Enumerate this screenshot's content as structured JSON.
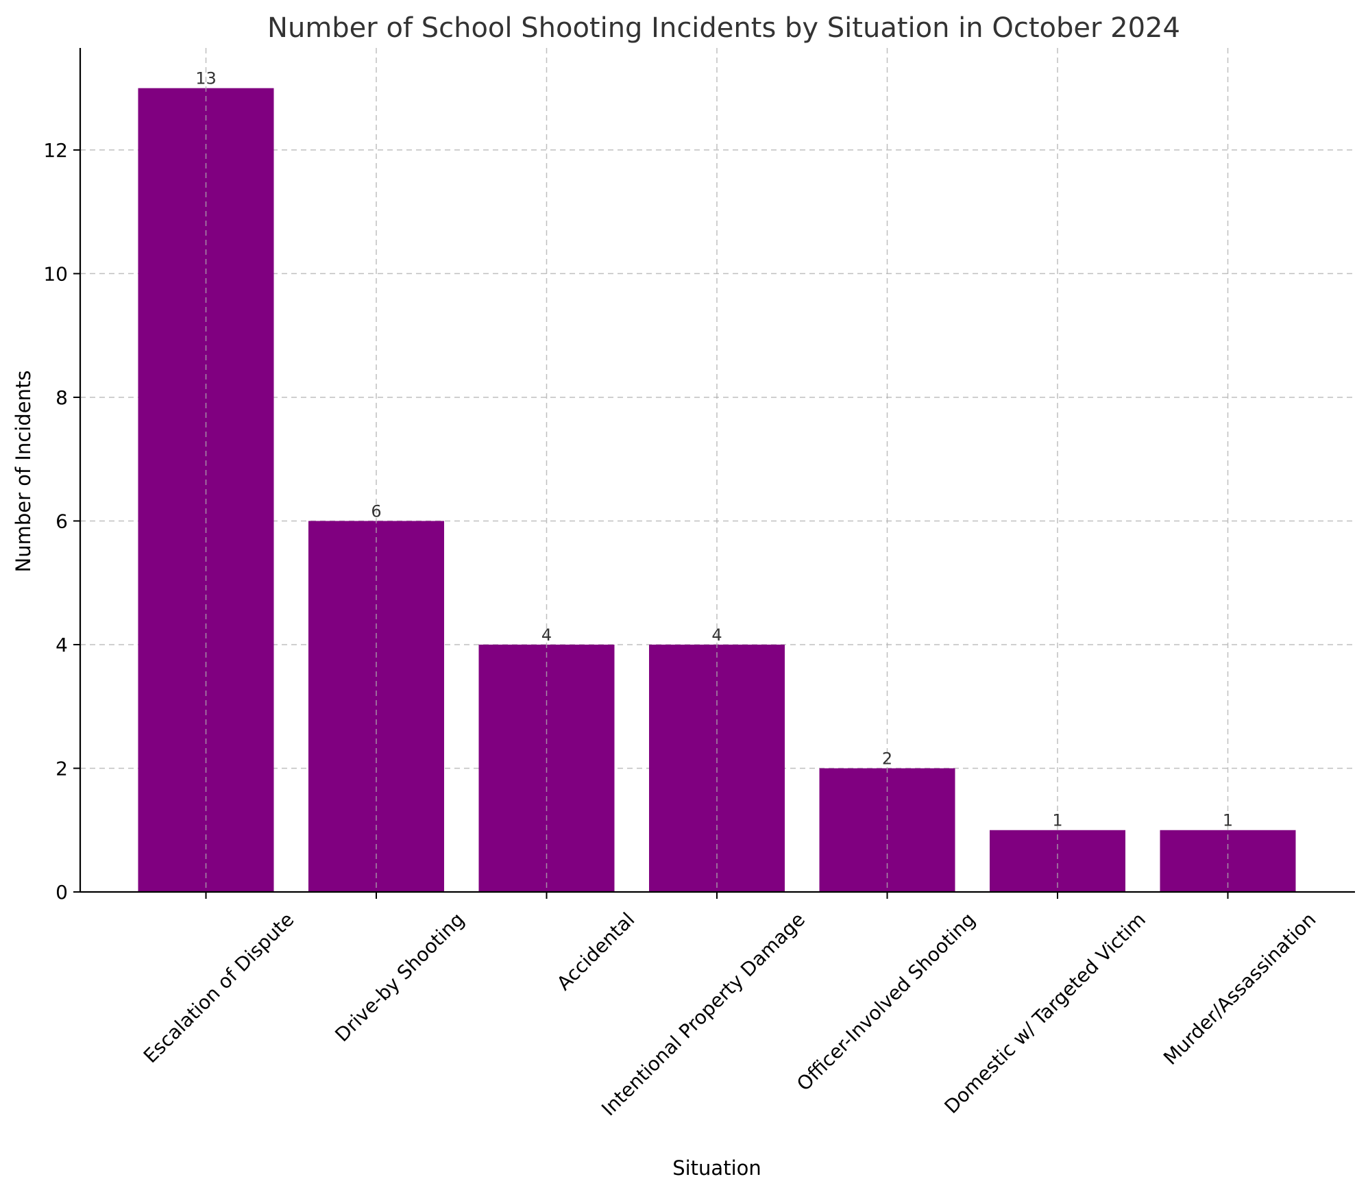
{
  "chart_data": {
    "type": "bar",
    "title": "Number of School Shooting Incidents by Situation in October 2024",
    "xlabel": "Situation",
    "ylabel": "Number of Incidents",
    "categories": [
      "Escalation of Dispute",
      "Drive-by Shooting",
      "Accidental",
      "Intentional Property Damage",
      "Officer-Involved Shooting",
      "Domestic w/ Targeted Victim",
      "Murder/Assassination"
    ],
    "values": [
      13,
      6,
      4,
      4,
      2,
      1,
      1
    ],
    "data_labels": [
      "13",
      "6",
      "4",
      "4",
      "2",
      "1",
      "1"
    ],
    "yticks": [
      0,
      2,
      4,
      6,
      8,
      10,
      12
    ],
    "ylim": [
      0,
      13.65
    ],
    "grid": true,
    "bar_color": "#800080",
    "legend": "none"
  }
}
